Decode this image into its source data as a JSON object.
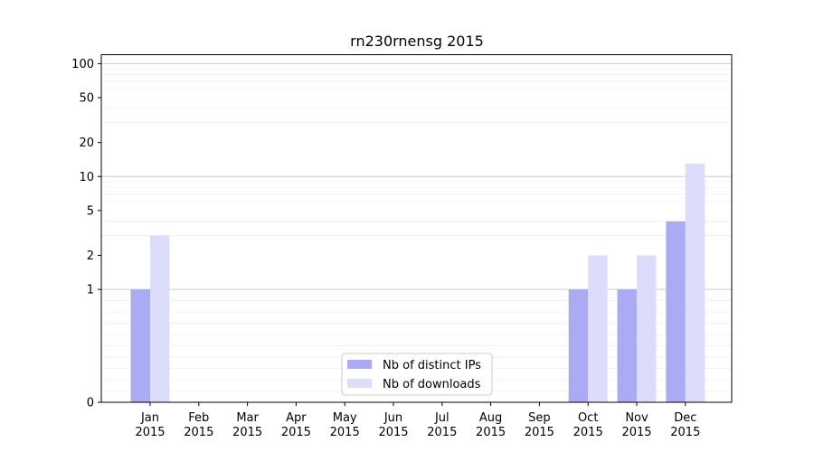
{
  "chart_data": {
    "type": "bar",
    "title": "rn230rnensg 2015",
    "xlabel": "",
    "ylabel": "",
    "scale": "symlog",
    "ylim": [
      0,
      120
    ],
    "yticks": [
      0,
      1,
      2,
      5,
      10,
      20,
      50,
      100
    ],
    "categories": [
      "Jan\n2015",
      "Feb\n2015",
      "Mar\n2015",
      "Apr\n2015",
      "May\n2015",
      "Jun\n2015",
      "Jul\n2015",
      "Aug\n2015",
      "Sep\n2015",
      "Oct\n2015",
      "Nov\n2015",
      "Dec\n2015"
    ],
    "series": [
      {
        "name": "Nb of distinct IPs",
        "color": "#aaaaf5",
        "values": [
          1,
          0,
          0,
          0,
          0,
          0,
          0,
          0,
          0,
          1,
          1,
          4
        ]
      },
      {
        "name": "Nb of downloads",
        "color": "#dcdcfb",
        "values": [
          3,
          0,
          0,
          0,
          0,
          0,
          0,
          0,
          0,
          2,
          2,
          13
        ]
      }
    ],
    "legend": "lower-center",
    "grid": true
  }
}
